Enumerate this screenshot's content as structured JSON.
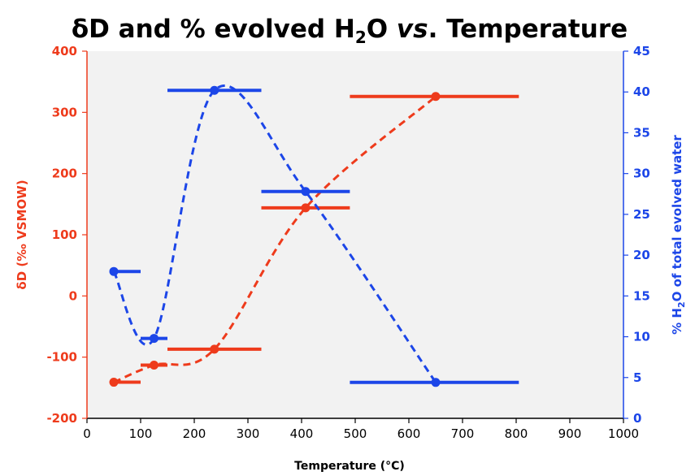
{
  "chart_data": {
    "type": "line",
    "title": {
      "prefix": "δD and % evolved H",
      "subscript": "2",
      "mid": "O ",
      "italic": "vs",
      "suffix": ". Temperature"
    },
    "xlabel": "Temperature (°C)",
    "ylabel_left": "δD (‰ VSMOW)",
    "ylabel_right": {
      "prefix": "% H",
      "subscript": "2",
      "suffix": "O of total evolved water"
    },
    "xlim": [
      0,
      1000
    ],
    "x_ticks": [
      0,
      100,
      200,
      300,
      400,
      500,
      600,
      700,
      800,
      900,
      1000
    ],
    "ylim_left": [
      -200,
      400
    ],
    "y_ticks_left": [
      -200,
      -100,
      0,
      100,
      200,
      300,
      400
    ],
    "ylim_right": [
      0,
      45
    ],
    "y_ticks_right": [
      0,
      5,
      10,
      15,
      20,
      25,
      30,
      35,
      40,
      45
    ],
    "grid": false,
    "series": [
      {
        "axis": "left",
        "color": "#ee3b1c",
        "points": [
          {
            "x": 50,
            "y": -141,
            "x_range": [
              50,
              100
            ]
          },
          {
            "x": 125,
            "y": -113,
            "x_range": [
              100,
              150
            ]
          },
          {
            "x": 237.5,
            "y": -87,
            "x_range": [
              150,
              325
            ]
          },
          {
            "x": 407.5,
            "y": 144,
            "x_range": [
              325,
              490
            ]
          },
          {
            "x": 650,
            "y": 326,
            "x_range": [
              490,
              805
            ]
          }
        ]
      },
      {
        "axis": "right",
        "color": "#1c46e8",
        "points": [
          {
            "x": 50,
            "y": 18,
            "x_range": [
              50,
              100
            ]
          },
          {
            "x": 125,
            "y": 9.8,
            "x_range": [
              100,
              150
            ]
          },
          {
            "x": 237.5,
            "y": 40.2,
            "x_range": [
              150,
              325
            ]
          },
          {
            "x": 407.5,
            "y": 27.8,
            "x_range": [
              325,
              490
            ]
          },
          {
            "x": 650,
            "y": 4.4,
            "x_range": [
              490,
              805
            ]
          }
        ]
      }
    ]
  },
  "colors": {
    "left_axis": "#ee3b1c",
    "right_axis": "#1c46e8",
    "plot_background": "#f2f2f2"
  }
}
